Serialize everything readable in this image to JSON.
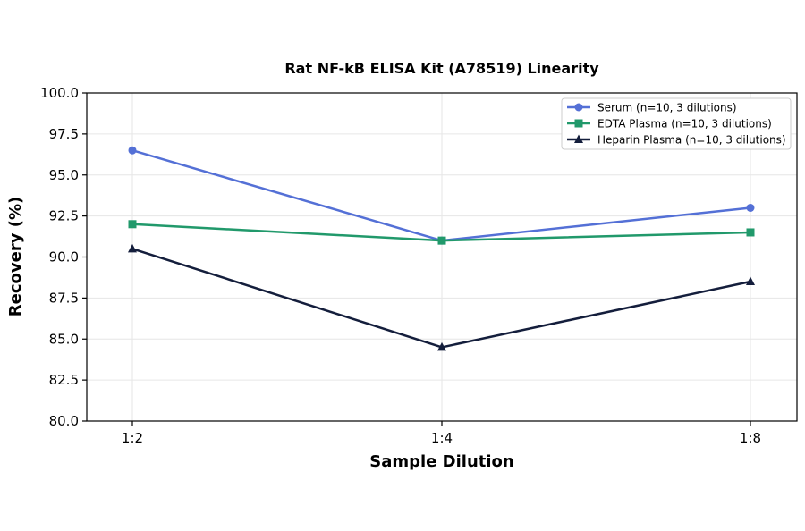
{
  "chart_data": {
    "type": "line",
    "title": "Rat NF-kB ELISA Kit (A78519) Linearity",
    "xlabel": "Sample Dilution",
    "ylabel": "Recovery (%)",
    "categories": [
      "1:2",
      "1:4",
      "1:8"
    ],
    "ylim": [
      80.0,
      100.0
    ],
    "yticks": [
      "80.0",
      "82.5",
      "85.0",
      "87.5",
      "90.0",
      "92.5",
      "95.0",
      "97.5",
      "100.0"
    ],
    "grid": true,
    "legend_position": "top-right",
    "series": [
      {
        "name": "Serum (n=10, 3 dilutions)",
        "values": [
          96.5,
          91.0,
          93.0
        ],
        "color": "#5470d6",
        "marker": "circle"
      },
      {
        "name": "EDTA Plasma (n=10, 3 dilutions)",
        "values": [
          92.0,
          91.0,
          91.5
        ],
        "color": "#21996b",
        "marker": "square"
      },
      {
        "name": "Heparin Plasma (n=10, 3 dilutions)",
        "values": [
          90.5,
          84.5,
          88.5
        ],
        "color": "#141e3c",
        "marker": "triangle"
      }
    ]
  }
}
